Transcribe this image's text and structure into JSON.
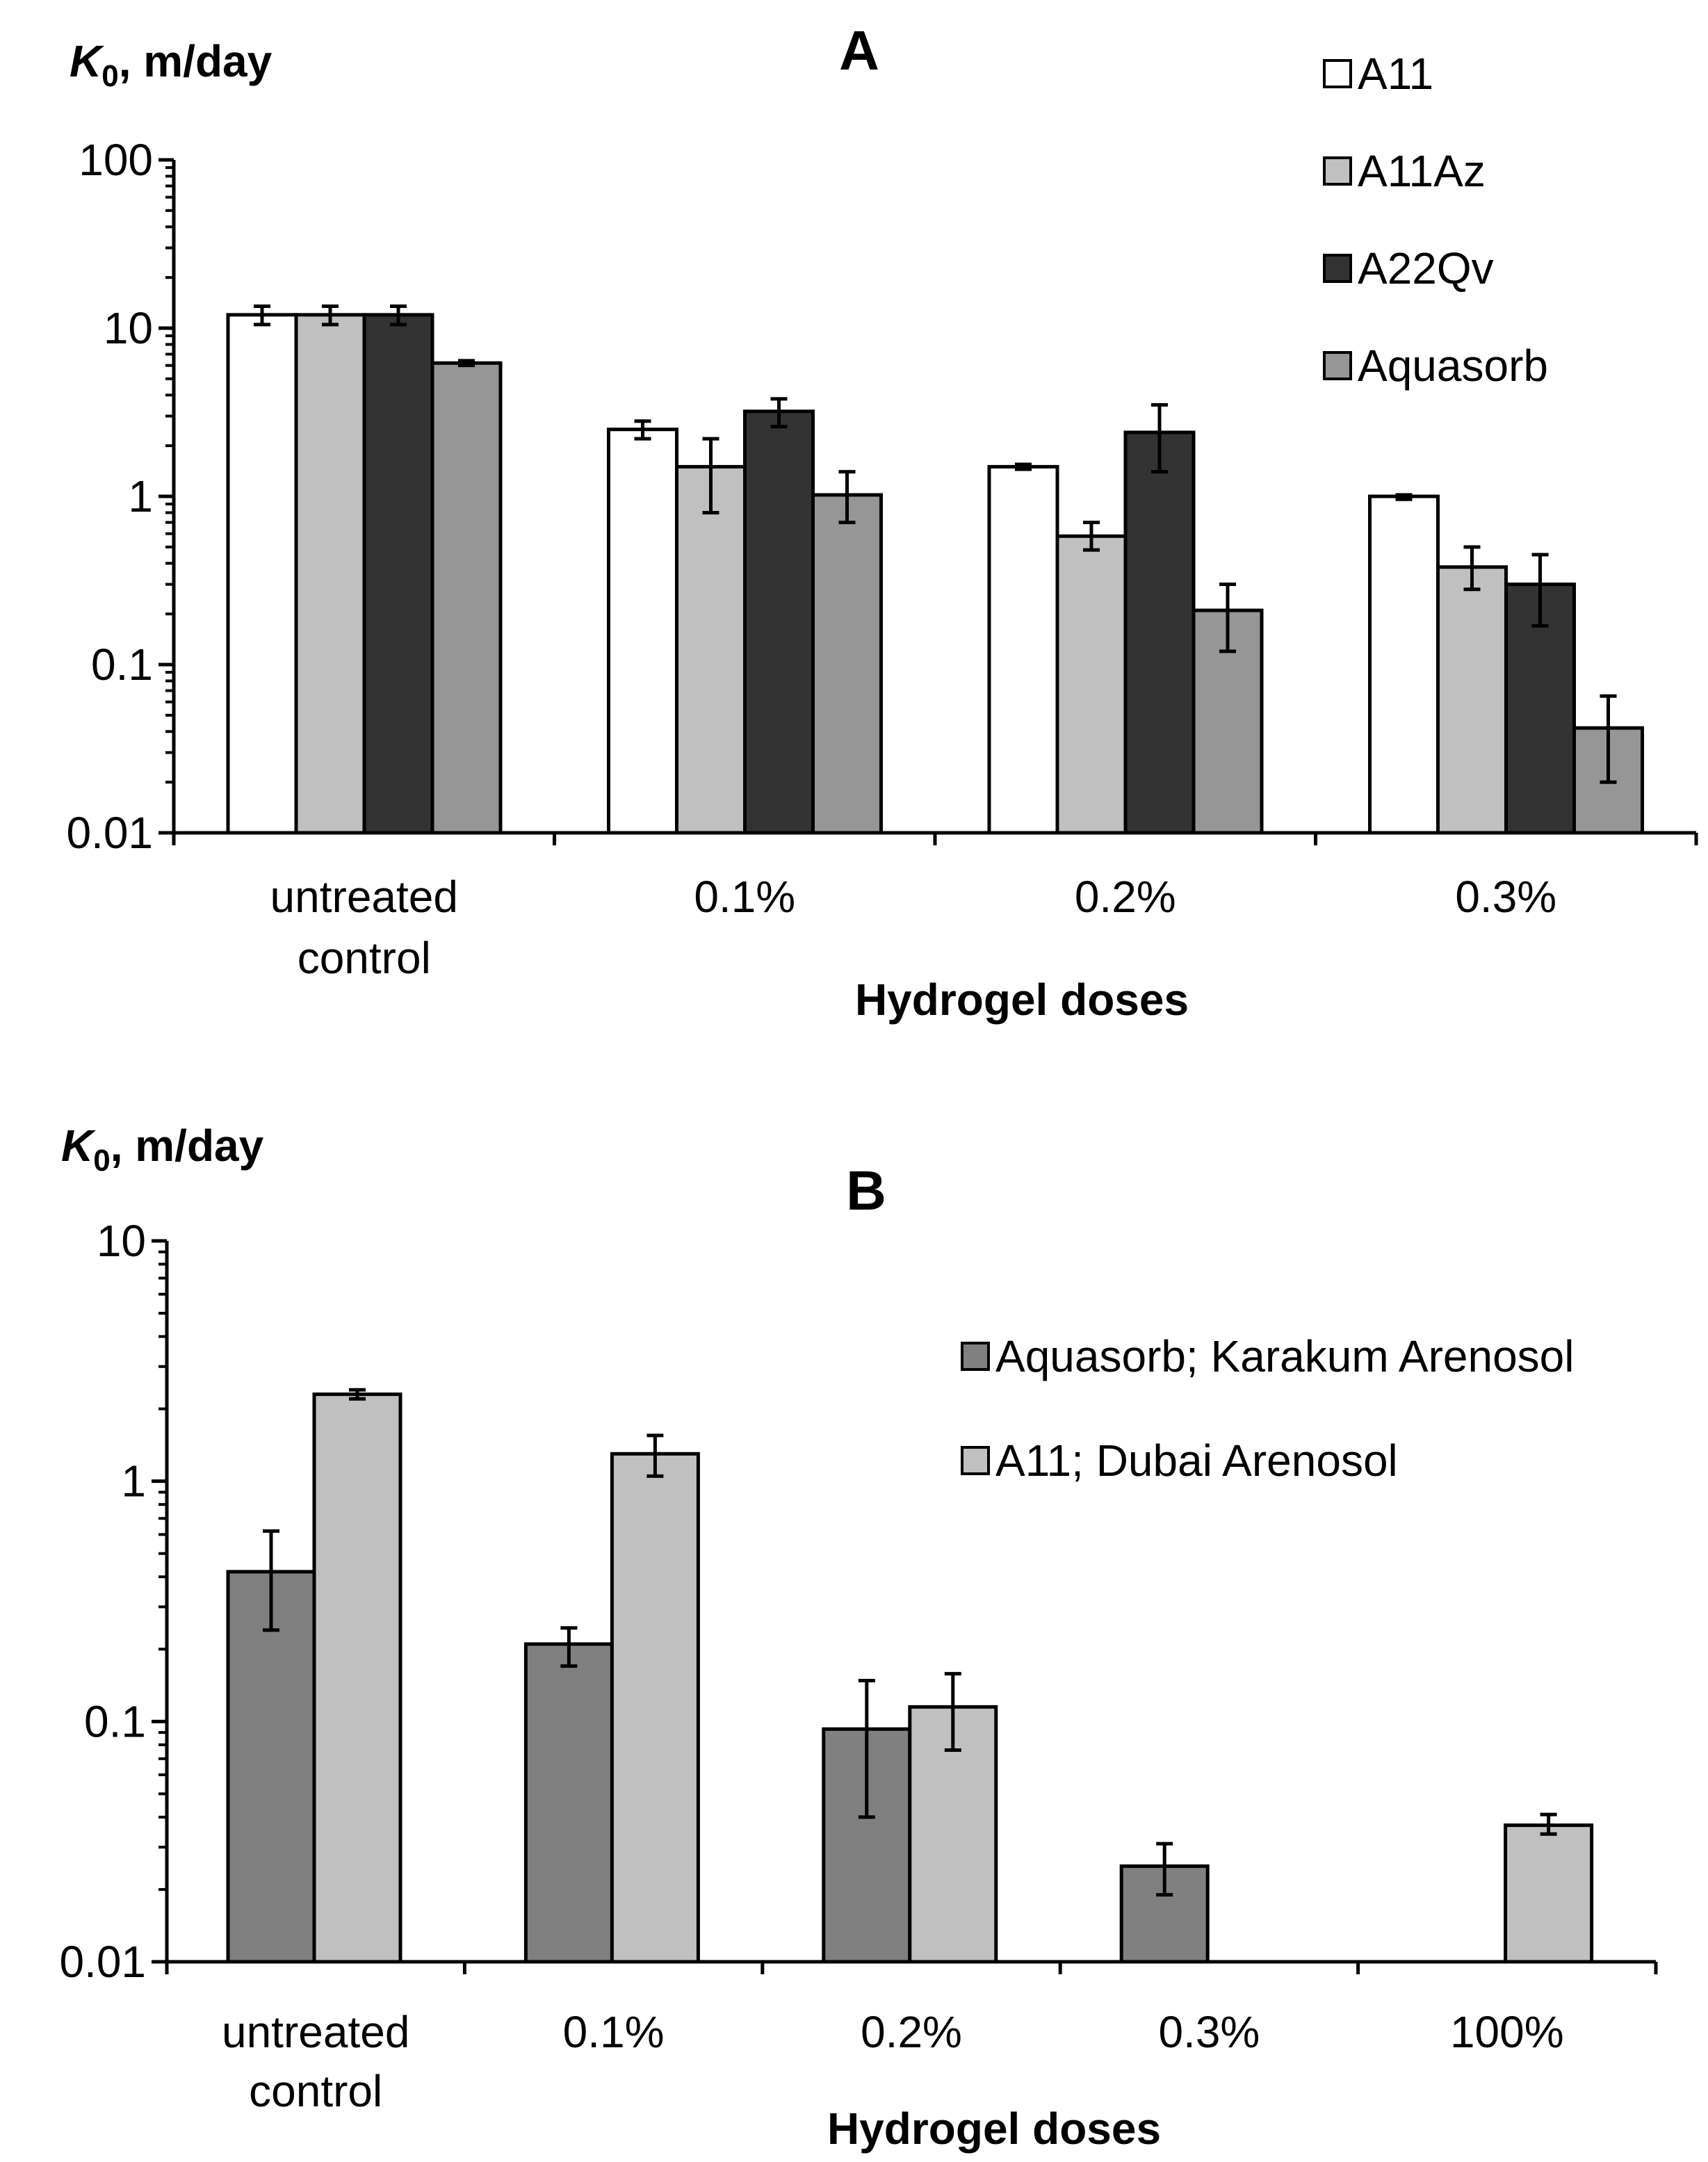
{
  "chart_data": [
    {
      "type": "bar",
      "panel": "A",
      "ylabel_symbol": "K",
      "ylabel_subscript": "0",
      "ylabel_unit": ", m/day",
      "xlabel": "Hydrogel doses",
      "y_scale": "log",
      "ylim": [
        0.01,
        100
      ],
      "y_ticks": [
        "100",
        "10",
        "1",
        "0.1",
        "0.01"
      ],
      "y_tick_values": [
        100,
        10,
        1,
        0.1,
        0.01
      ],
      "categories": [
        [
          "untreated",
          "control"
        ],
        [
          "0.1%"
        ],
        [
          "0.2%"
        ],
        [
          "0.3%"
        ]
      ],
      "legend_position": "top-right",
      "grid": false,
      "series": [
        {
          "name": "A11",
          "color": "#ffffff",
          "values": [
            12,
            2.5,
            1.5,
            1.0
          ],
          "err_low": [
            10.5,
            2.2,
            1.45,
            0.96
          ],
          "err_high": [
            13.5,
            2.8,
            1.55,
            1.02
          ]
        },
        {
          "name": "A11Az",
          "color": "#c0c0c0",
          "values": [
            12,
            1.5,
            0.58,
            0.38
          ],
          "err_low": [
            10.5,
            0.8,
            0.48,
            0.28
          ],
          "err_high": [
            13.5,
            2.2,
            0.7,
            0.5
          ]
        },
        {
          "name": "A22Qv",
          "color": "#333333",
          "values": [
            12,
            3.2,
            2.4,
            0.3
          ],
          "err_low": [
            10.5,
            2.6,
            1.4,
            0.17
          ],
          "err_high": [
            13.5,
            3.8,
            3.5,
            0.45
          ]
        },
        {
          "name": "Aquasorb",
          "color": "#969696",
          "values": [
            6.2,
            1.02,
            0.21,
            0.042
          ],
          "err_low": [
            6.0,
            0.7,
            0.12,
            0.02
          ],
          "err_high": [
            6.4,
            1.4,
            0.3,
            0.065
          ]
        }
      ]
    },
    {
      "type": "bar",
      "panel": "B",
      "ylabel_symbol": "K",
      "ylabel_subscript": "0",
      "ylabel_unit": ", m/day",
      "xlabel": "Hydrogel doses",
      "y_scale": "log",
      "ylim": [
        0.01,
        10
      ],
      "y_ticks": [
        "10",
        "1",
        "0.1",
        "0.01"
      ],
      "y_tick_values": [
        10,
        1,
        0.1,
        0.01
      ],
      "categories": [
        [
          "untreated",
          "control"
        ],
        [
          "0.1%"
        ],
        [
          "0.2%"
        ],
        [
          "0.3%"
        ],
        [
          "100%"
        ]
      ],
      "legend_position": "top-right",
      "grid": false,
      "series": [
        {
          "name": "Aquasorb; Karakum Arenosol",
          "color": "#808080",
          "values": [
            0.42,
            0.21,
            0.093,
            0.025,
            null
          ],
          "err_low": [
            0.24,
            0.17,
            0.04,
            0.019,
            null
          ],
          "err_high": [
            0.62,
            0.245,
            0.148,
            0.031,
            null
          ]
        },
        {
          "name": "A11; Dubai Arenosol",
          "color": "#c0c0c0",
          "values": [
            2.3,
            1.3,
            0.115,
            null,
            0.037
          ],
          "err_low": [
            2.2,
            1.05,
            0.076,
            null,
            0.034
          ],
          "err_high": [
            2.4,
            1.55,
            0.158,
            null,
            0.041
          ]
        }
      ]
    }
  ]
}
